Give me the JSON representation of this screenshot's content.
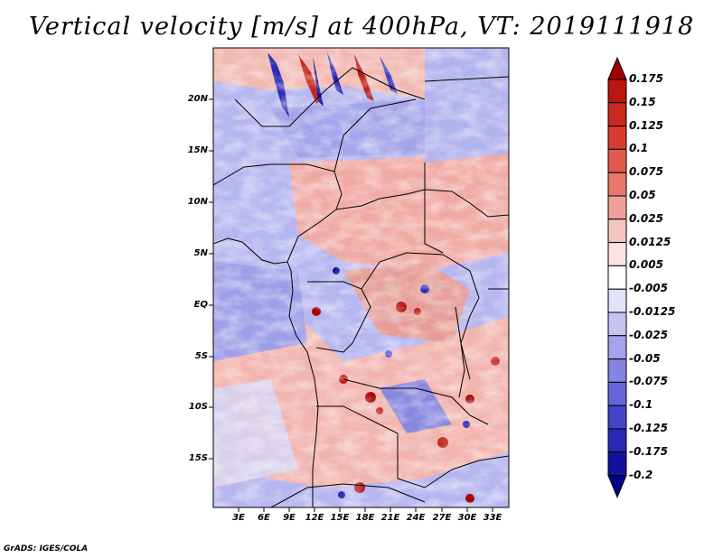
{
  "title": "Vertical velocity [m/s] at 400hPa, VT: 2019111918",
  "credit": "GrADS: IGES/COLA",
  "latitude_labels": [
    "20N",
    "15N",
    "10N",
    "5N",
    "EQ",
    "5S",
    "10S",
    "15S"
  ],
  "longitude_labels": [
    "3E",
    "6E",
    "9E",
    "12E",
    "15E",
    "18E",
    "21E",
    "24E",
    "27E",
    "30E",
    "33E"
  ],
  "colorbar": {
    "labels": [
      "0.175",
      "0.15",
      "0.125",
      "0.1",
      "0.075",
      "0.05",
      "0.025",
      "0.0125",
      "0.005",
      "-0.005",
      "-0.0125",
      "-0.025",
      "-0.05",
      "-0.075",
      "-0.1",
      "-0.125",
      "-0.175",
      "-0.2"
    ],
    "colors": [
      "#a50000",
      "#b8160f",
      "#c8281e",
      "#d63c30",
      "#e05a4e",
      "#e8786e",
      "#f0a098",
      "#f6c4be",
      "#fbe4e0",
      "#ffffff",
      "#e2e2fa",
      "#c4c4f2",
      "#a4a4ea",
      "#8484e2",
      "#6464d8",
      "#4444c8",
      "#2828b4",
      "#12129e",
      "#00008a"
    ]
  }
}
